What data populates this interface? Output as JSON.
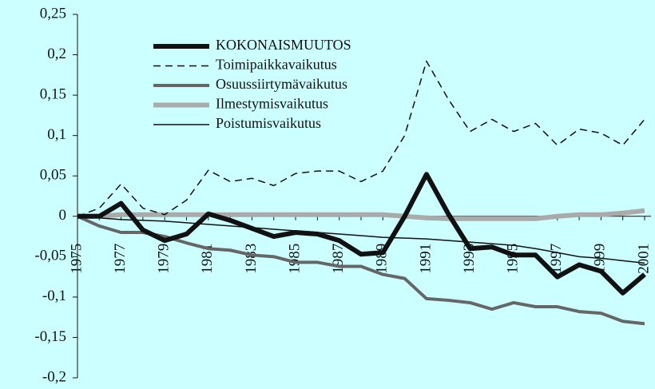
{
  "chart_data": {
    "type": "line",
    "categories": [
      "1975",
      null,
      "1977",
      null,
      "1979",
      null,
      "1981",
      null,
      "1983",
      null,
      "1985",
      null,
      "1987",
      null,
      "1989",
      null,
      "1991",
      null,
      "1993",
      null,
      "1995",
      null,
      "1997",
      null,
      "1999",
      null,
      "2001"
    ],
    "ylim": [
      -0.2,
      0.25
    ],
    "yticks": [
      {
        "value": -0.2,
        "label": "-0,2"
      },
      {
        "value": -0.15,
        "label": "-0,15"
      },
      {
        "value": -0.1,
        "label": "-0,1"
      },
      {
        "value": -0.05,
        "label": "-0,05"
      },
      0,
      {
        "value": 0.05,
        "label": "0,05"
      },
      {
        "value": 0.1,
        "label": "0,1"
      },
      {
        "value": 0.15,
        "label": "0,15"
      },
      {
        "value": 0.2,
        "label": "0,2"
      },
      {
        "value": 0.25,
        "label": "0,25"
      }
    ],
    "legend": "upper left",
    "series": [
      {
        "name": "KOKONAISMUUTOS",
        "color": "#111111",
        "width": 6,
        "style": "solid",
        "values": [
          0,
          0,
          0.016,
          -0.017,
          -0.03,
          -0.022,
          0.003,
          -0.005,
          -0.015,
          -0.025,
          -0.02,
          -0.022,
          -0.03,
          -0.047,
          -0.045,
          0,
          0.052,
          0.003,
          -0.04,
          -0.038,
          -0.048,
          -0.048,
          -0.075,
          -0.06,
          -0.068,
          -0.095,
          -0.072
        ]
      },
      {
        "name": "Toimipaikkavaikutus",
        "color": "#111111",
        "width": 1.5,
        "style": "dashed",
        "values": [
          0,
          0.01,
          0.04,
          0.01,
          0.002,
          0.02,
          0.057,
          0.043,
          0.047,
          0.038,
          0.053,
          0.056,
          0.056,
          0.043,
          0.056,
          0.1,
          0.192,
          0.145,
          0.105,
          0.12,
          0.105,
          0.115,
          0.088,
          0.108,
          0.103,
          0.088,
          0.12
        ]
      },
      {
        "name": "Osuussiirtymävaikutus",
        "color": "#666666",
        "width": 4,
        "style": "solid",
        "values": [
          0,
          -0.012,
          -0.02,
          -0.02,
          -0.025,
          -0.033,
          -0.04,
          -0.042,
          -0.048,
          -0.05,
          -0.057,
          -0.057,
          -0.062,
          -0.062,
          -0.072,
          -0.077,
          -0.102,
          -0.104,
          -0.107,
          -0.115,
          -0.107,
          -0.112,
          -0.112,
          -0.118,
          -0.12,
          -0.13,
          -0.133
        ]
      },
      {
        "name": "Ilmestymisvaikutus",
        "color": "#aaaaaa",
        "width": 6,
        "style": "solid",
        "values": [
          0,
          0,
          0.002,
          0.002,
          0.002,
          0.002,
          0.002,
          0.002,
          0.002,
          0.002,
          0.002,
          0.002,
          0.002,
          0.002,
          0.002,
          0,
          -0.002,
          -0.003,
          -0.003,
          -0.003,
          -0.003,
          -0.003,
          0,
          0.002,
          0.002,
          0.004,
          0.007
        ]
      },
      {
        "name": "Poistumisvaikutus",
        "color": "#111111",
        "width": 1.5,
        "style": "solid",
        "values": [
          0,
          -0.002,
          -0.004,
          -0.005,
          -0.006,
          -0.008,
          -0.01,
          -0.012,
          -0.014,
          -0.016,
          -0.018,
          -0.02,
          -0.022,
          -0.024,
          -0.026,
          -0.027,
          -0.028,
          -0.03,
          -0.032,
          -0.034,
          -0.036,
          -0.04,
          -0.045,
          -0.05,
          -0.052,
          -0.055,
          -0.058
        ]
      }
    ]
  }
}
